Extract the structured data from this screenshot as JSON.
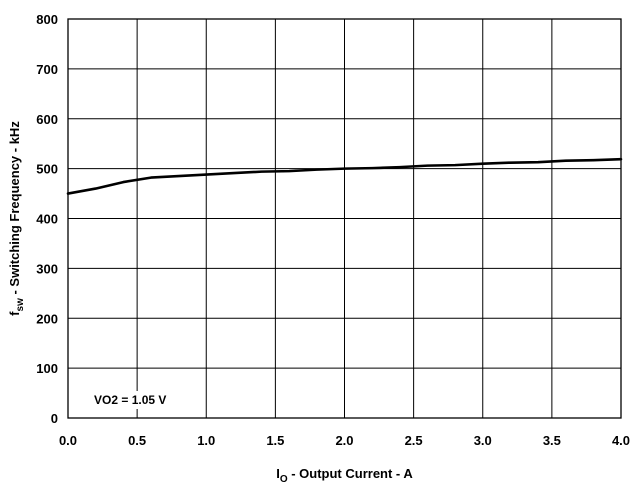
{
  "chart_data": {
    "type": "line",
    "xlabel": {
      "symbol": "I",
      "subscript": "O",
      "text": " - Output Current - A"
    },
    "ylabel": {
      "symbol": "f",
      "subscript": "sw",
      "text": " - Switching Frequency - kHz"
    },
    "xlim": [
      0,
      4
    ],
    "ylim": [
      0,
      800
    ],
    "xticks": [
      0,
      0.5,
      1,
      1.5,
      2,
      2.5,
      3,
      3.5,
      4
    ],
    "xtick_labels": [
      "0.0",
      "0.5",
      "1.0",
      "1.5",
      "2.0",
      "2.5",
      "3.0",
      "3.5",
      "4.0"
    ],
    "yticks": [
      0,
      100,
      200,
      300,
      400,
      500,
      600,
      700,
      800
    ],
    "ytick_labels": [
      "0",
      "100",
      "200",
      "300",
      "400",
      "500",
      "600",
      "700",
      "800"
    ],
    "grid": true,
    "annotation": "VO2 = 1.05 V",
    "line_color": "#000000",
    "series": [
      {
        "x": [
          0.0,
          0.2,
          0.4,
          0.6,
          0.8,
          1.0,
          1.2,
          1.4,
          1.6,
          1.8,
          2.0,
          2.2,
          2.4,
          2.6,
          2.8,
          3.0,
          3.2,
          3.4,
          3.6,
          3.8,
          4.0
        ],
        "y": [
          450,
          460,
          473,
          482,
          485,
          488,
          491,
          494,
          495,
          498,
          500,
          501,
          503,
          506,
          507,
          510,
          512,
          513,
          516,
          517,
          519
        ]
      }
    ]
  }
}
